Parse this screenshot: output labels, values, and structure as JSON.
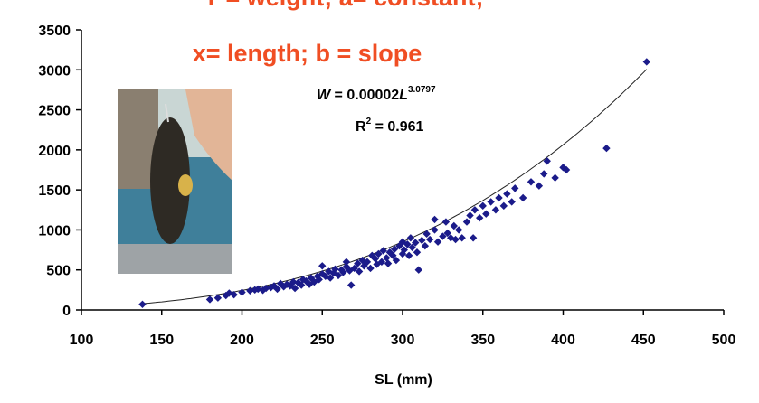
{
  "annotation": {
    "line1": "Y = weight; a= constant;",
    "line2": "x= length; b = slope"
  },
  "equation": {
    "w": "W",
    "eq_text": " = 0.00002",
    "l": "L",
    "exponent": "3.0797",
    "r2_label": "R",
    "r2_sup": "2",
    "r2_value": " = 0.961"
  },
  "photo": {
    "icon": "fish-photo",
    "colors": {
      "sky": "#c9d6d4",
      "water": "#3f7f9a",
      "fish": "#2e2a24",
      "skin": "#e2b597"
    }
  },
  "chart_data": {
    "type": "scatter",
    "title": "",
    "xlabel": "SL (mm)",
    "ylabel": "",
    "xlim": [
      100,
      500
    ],
    "ylim": [
      0,
      3500
    ],
    "xticks": [
      "100",
      "150",
      "200",
      "250",
      "300",
      "350",
      "400",
      "450",
      "500"
    ],
    "yticks": [
      "0",
      "500",
      "1000",
      "1500",
      "2000",
      "2500",
      "3000",
      "3500"
    ],
    "grid": false,
    "marker_color": "#1b1b8a",
    "fit": {
      "type": "power",
      "a": 2e-05,
      "b": 3.0797,
      "r2": 0.961,
      "x_range": [
        138,
        452
      ]
    },
    "points": [
      [
        138,
        70
      ],
      [
        180,
        130
      ],
      [
        185,
        150
      ],
      [
        190,
        180
      ],
      [
        192,
        210
      ],
      [
        195,
        190
      ],
      [
        200,
        220
      ],
      [
        205,
        240
      ],
      [
        208,
        250
      ],
      [
        210,
        260
      ],
      [
        213,
        245
      ],
      [
        215,
        270
      ],
      [
        218,
        280
      ],
      [
        220,
        300
      ],
      [
        222,
        260
      ],
      [
        224,
        330
      ],
      [
        226,
        290
      ],
      [
        228,
        320
      ],
      [
        230,
        300
      ],
      [
        232,
        350
      ],
      [
        233,
        270
      ],
      [
        235,
        340
      ],
      [
        237,
        310
      ],
      [
        238,
        380
      ],
      [
        240,
        360
      ],
      [
        242,
        320
      ],
      [
        243,
        400
      ],
      [
        245,
        350
      ],
      [
        247,
        420
      ],
      [
        248,
        380
      ],
      [
        250,
        450
      ],
      [
        250,
        550
      ],
      [
        252,
        420
      ],
      [
        254,
        480
      ],
      [
        255,
        400
      ],
      [
        257,
        460
      ],
      [
        258,
        510
      ],
      [
        260,
        430
      ],
      [
        262,
        500
      ],
      [
        263,
        470
      ],
      [
        265,
        540
      ],
      [
        265,
        600
      ],
      [
        267,
        490
      ],
      [
        268,
        310
      ],
      [
        270,
        520
      ],
      [
        272,
        580
      ],
      [
        273,
        480
      ],
      [
        275,
        620
      ],
      [
        276,
        550
      ],
      [
        278,
        600
      ],
      [
        280,
        520
      ],
      [
        281,
        680
      ],
      [
        283,
        640
      ],
      [
        284,
        570
      ],
      [
        285,
        700
      ],
      [
        287,
        600
      ],
      [
        288,
        740
      ],
      [
        290,
        650
      ],
      [
        291,
        580
      ],
      [
        292,
        720
      ],
      [
        294,
        680
      ],
      [
        295,
        760
      ],
      [
        296,
        620
      ],
      [
        298,
        800
      ],
      [
        300,
        700
      ],
      [
        300,
        850
      ],
      [
        301,
        750
      ],
      [
        303,
        820
      ],
      [
        304,
        680
      ],
      [
        305,
        900
      ],
      [
        306,
        780
      ],
      [
        308,
        840
      ],
      [
        309,
        720
      ],
      [
        310,
        500
      ],
      [
        312,
        870
      ],
      [
        314,
        800
      ],
      [
        315,
        950
      ],
      [
        317,
        880
      ],
      [
        320,
        1000
      ],
      [
        320,
        1130
      ],
      [
        322,
        850
      ],
      [
        325,
        920
      ],
      [
        327,
        1100
      ],
      [
        328,
        960
      ],
      [
        330,
        900
      ],
      [
        332,
        1050
      ],
      [
        333,
        880
      ],
      [
        335,
        1000
      ],
      [
        337,
        900
      ],
      [
        340,
        1100
      ],
      [
        342,
        1180
      ],
      [
        344,
        900
      ],
      [
        345,
        1250
      ],
      [
        348,
        1150
      ],
      [
        350,
        1300
      ],
      [
        352,
        1200
      ],
      [
        355,
        1350
      ],
      [
        358,
        1250
      ],
      [
        360,
        1400
      ],
      [
        363,
        1300
      ],
      [
        365,
        1450
      ],
      [
        368,
        1350
      ],
      [
        370,
        1520
      ],
      [
        375,
        1400
      ],
      [
        380,
        1600
      ],
      [
        385,
        1550
      ],
      [
        388,
        1700
      ],
      [
        390,
        1860
      ],
      [
        395,
        1650
      ],
      [
        400,
        1780
      ],
      [
        402,
        1750
      ],
      [
        427,
        2020
      ],
      [
        452,
        3100
      ]
    ]
  }
}
